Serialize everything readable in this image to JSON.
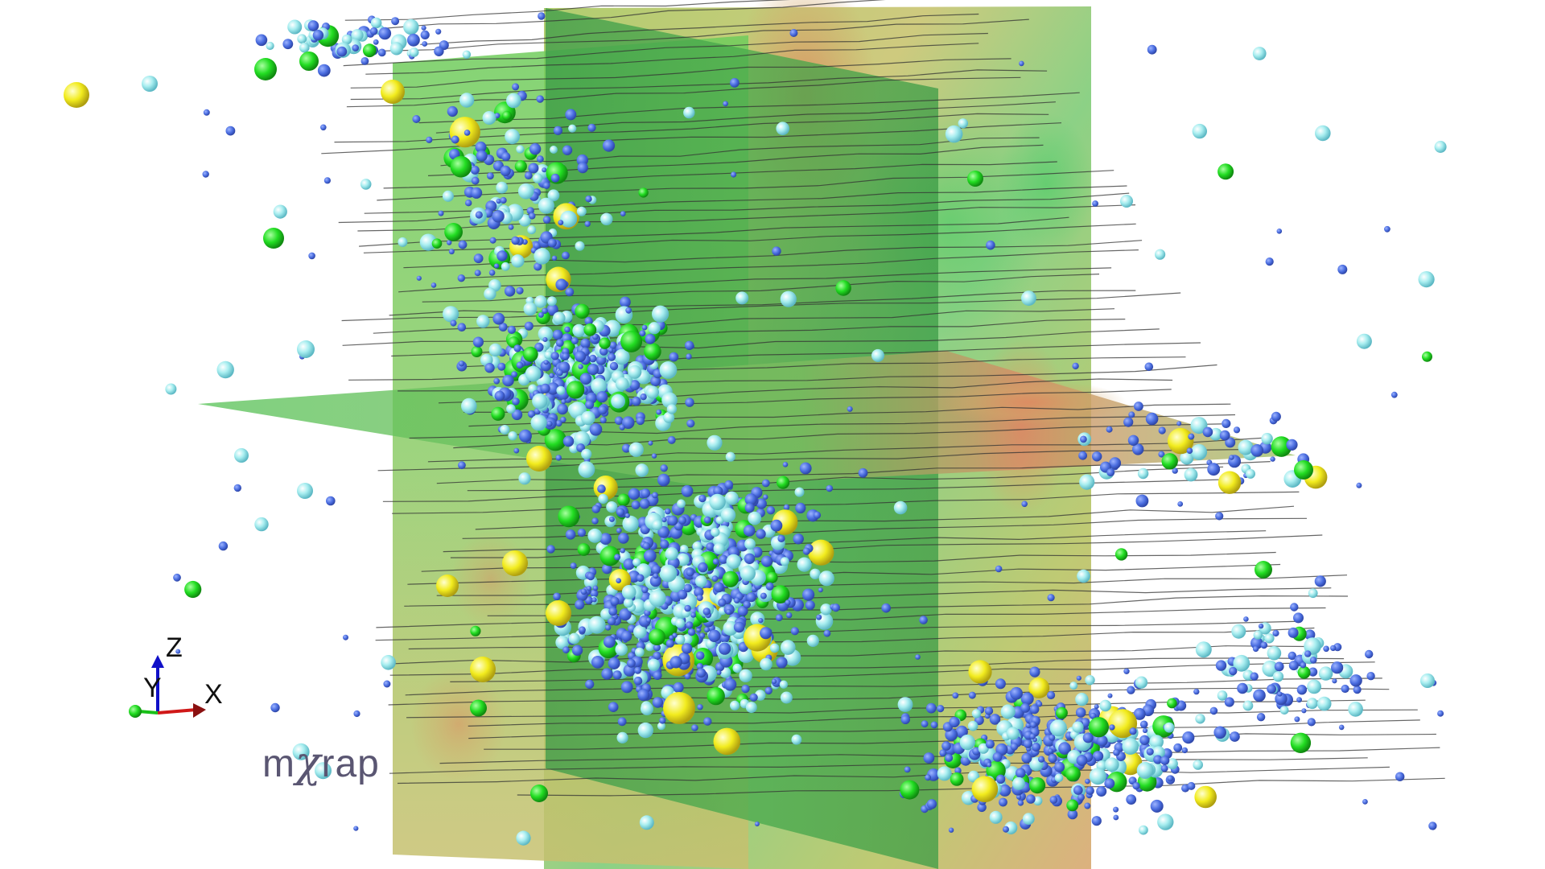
{
  "viewer": {
    "brand": {
      "prefix": "m",
      "chi": "χ",
      "suffix": "rap"
    },
    "axes": {
      "x_label": "X",
      "y_label": "Y",
      "z_label": "Z",
      "x_color": "#d01818",
      "y_color": "#18c018",
      "z_color": "#1010c8"
    },
    "legend_colors": {
      "small_event": "#4a6de0",
      "medium_event": "#9ee8ea",
      "large_event": "#22dd22",
      "largest_event": "#f2ec1e",
      "development_trace": "#333333"
    },
    "background": "#ffffff"
  }
}
